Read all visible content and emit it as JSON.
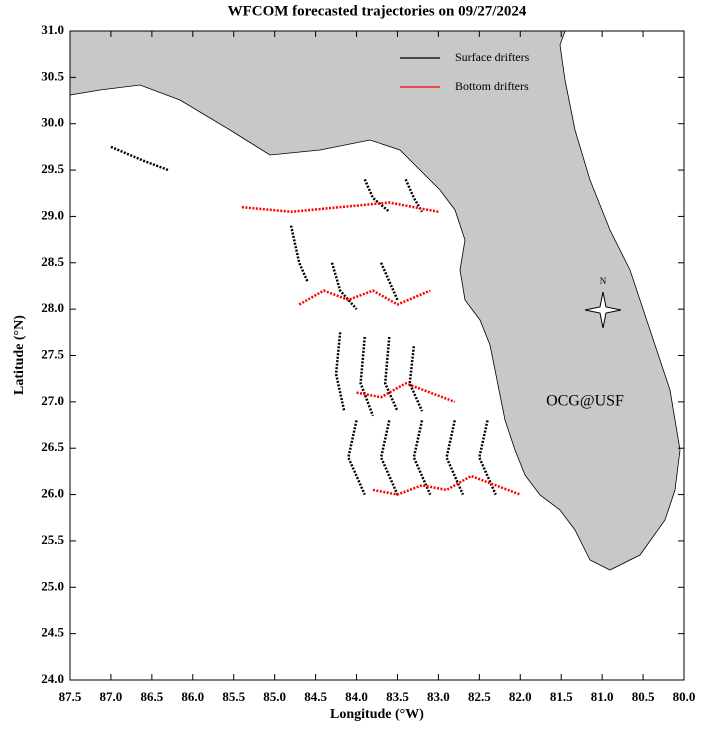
{
  "chart_data": {
    "type": "map",
    "title": "WFCOM forecasted trajectories on 09/27/2024",
    "x_label": "Longitude (°W)",
    "y_label": "Latitude (°N)",
    "annotation": "OCG@USF",
    "annotation_color": "#ff0000",
    "compass_label": "N",
    "xlim": [
      87.5,
      80.0
    ],
    "ylim": [
      24.0,
      31.0
    ],
    "xticks": [
      87.5,
      {
        "value": 87,
        "label": "87.0"
      },
      86.5,
      {
        "value": 86,
        "label": "86.0"
      },
      85.5,
      {
        "value": 85,
        "label": "85.0"
      },
      84.5,
      {
        "value": 84,
        "label": "84.0"
      },
      83.5,
      {
        "value": 83,
        "label": "83.0"
      },
      82.5,
      {
        "value": 82,
        "label": "82.0"
      },
      81.5,
      {
        "value": 81,
        "label": "81.0"
      },
      80.5,
      {
        "value": 80,
        "label": "80.0"
      }
    ],
    "yticks": [
      {
        "value": 24,
        "label": "24.0"
      },
      24.5,
      {
        "value": 25,
        "label": "25.0"
      },
      25.5,
      {
        "value": 26,
        "label": "26.0"
      },
      26.5,
      {
        "value": 27,
        "label": "27.0"
      },
      27.5,
      {
        "value": 28,
        "label": "28.0"
      },
      28.5,
      {
        "value": 29,
        "label": "29.0"
      },
      29.5,
      {
        "value": 30,
        "label": "30.0"
      },
      30.5,
      {
        "value": 31,
        "label": "31.0"
      }
    ],
    "series": [
      {
        "name": "Surface drifters",
        "color": "#000000",
        "x": [
          87.0,
          86.6,
          86.3,
          null,
          84.8,
          84.7,
          84.6,
          null,
          84.2,
          84.25,
          84.15,
          null,
          83.9,
          83.95,
          83.8,
          null,
          83.6,
          83.65,
          83.5,
          null,
          83.3,
          83.35,
          83.2,
          null,
          84.0,
          84.1,
          83.9,
          null,
          83.6,
          83.7,
          83.5,
          null,
          83.2,
          83.3,
          83.1,
          null,
          82.8,
          82.9,
          82.7,
          null,
          82.4,
          82.5,
          82.3,
          null,
          84.3,
          84.2,
          84.0,
          null,
          83.7,
          83.6,
          83.5,
          null,
          83.9,
          83.8,
          83.6,
          null,
          83.4,
          83.3,
          83.2
        ],
        "y": [
          29.75,
          29.6,
          29.5,
          null,
          28.9,
          28.5,
          28.3,
          null,
          27.75,
          27.3,
          26.9,
          null,
          27.7,
          27.2,
          26.85,
          null,
          27.7,
          27.2,
          26.9,
          null,
          27.6,
          27.2,
          26.9,
          null,
          26.8,
          26.4,
          26.0,
          null,
          26.8,
          26.4,
          26.0,
          null,
          26.8,
          26.4,
          26.0,
          null,
          26.8,
          26.4,
          26.0,
          null,
          26.8,
          26.4,
          26.0,
          null,
          28.5,
          28.2,
          28.0,
          null,
          28.5,
          28.3,
          28.1,
          null,
          29.4,
          29.2,
          29.05,
          null,
          29.4,
          29.2,
          29.05
        ]
      },
      {
        "name": "Bottom drifters",
        "color": "#ff0000",
        "x": [
          85.4,
          84.8,
          84.2,
          83.6,
          83.0,
          null,
          84.7,
          84.4,
          84.1,
          83.8,
          83.5,
          83.1,
          null,
          84.0,
          83.7,
          83.4,
          83.1,
          82.8,
          null,
          83.8,
          83.5,
          83.2,
          82.9,
          82.6,
          82.3,
          82.0
        ],
        "y": [
          29.1,
          29.05,
          29.1,
          29.15,
          29.05,
          null,
          28.05,
          28.2,
          28.1,
          28.2,
          28.05,
          28.2,
          null,
          27.1,
          27.05,
          27.2,
          27.1,
          27.0,
          null,
          26.05,
          26.0,
          26.1,
          26.05,
          26.2,
          26.1,
          26.0
        ]
      }
    ]
  }
}
